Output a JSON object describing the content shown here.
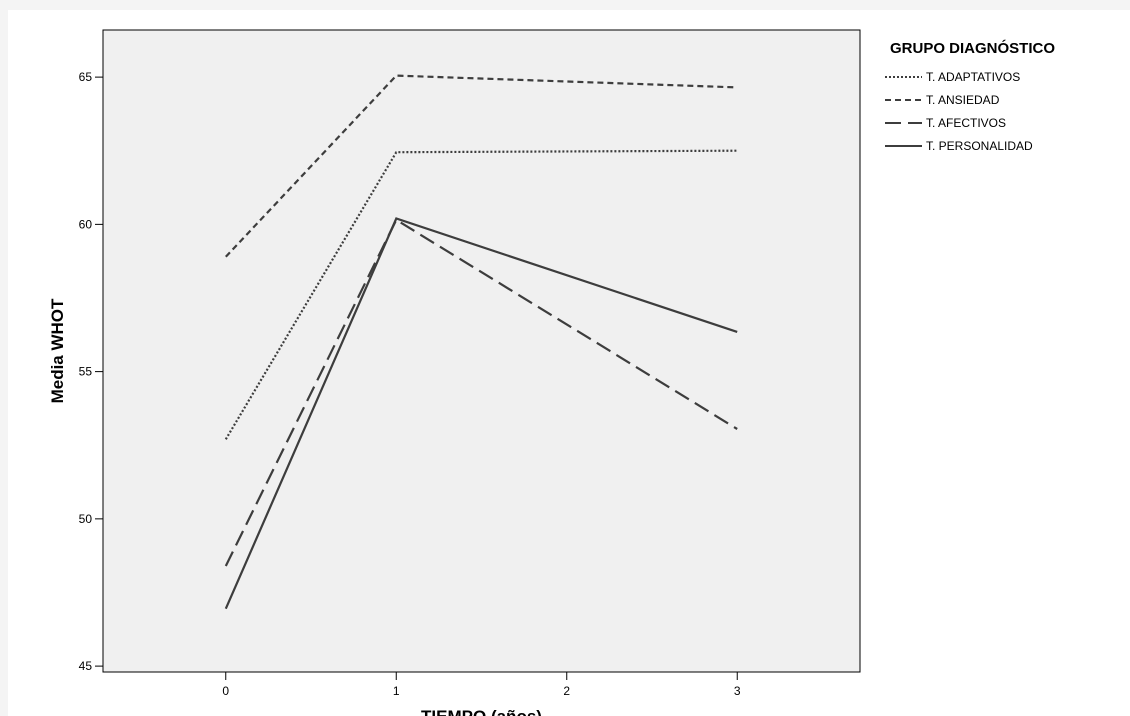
{
  "chart_data": {
    "type": "line",
    "xlabel": "TIEMPO (años)",
    "ylabel": "Media WHOT",
    "x": [
      0,
      1,
      3
    ],
    "xticks": [
      0,
      1,
      2,
      3
    ],
    "xlim": [
      -0.72,
      3.72
    ],
    "yticks": [
      45,
      50,
      55,
      60,
      65
    ],
    "ylim": [
      44.8,
      66.6
    ],
    "grid": false,
    "legend_position": "right",
    "legend_title": "GRUPO DIAGNÓSTICO",
    "series": [
      {
        "name": "T. ADAPTATIVOS",
        "values": [
          52.7,
          62.45,
          62.5
        ],
        "dash": "dotted"
      },
      {
        "name": "T. ANSIEDAD",
        "values": [
          58.9,
          65.05,
          64.65
        ],
        "dash": "short-dash"
      },
      {
        "name": "T. AFECTIVOS",
        "values": [
          48.4,
          60.15,
          53.05
        ],
        "dash": "long-dash"
      },
      {
        "name": "T. PERSONALIDAD",
        "values": [
          46.95,
          60.2,
          56.35
        ],
        "dash": "solid"
      }
    ],
    "colors": {
      "plot_background": "#f0f0f0",
      "line": "#3d3d3d",
      "axis": "#000000"
    }
  }
}
